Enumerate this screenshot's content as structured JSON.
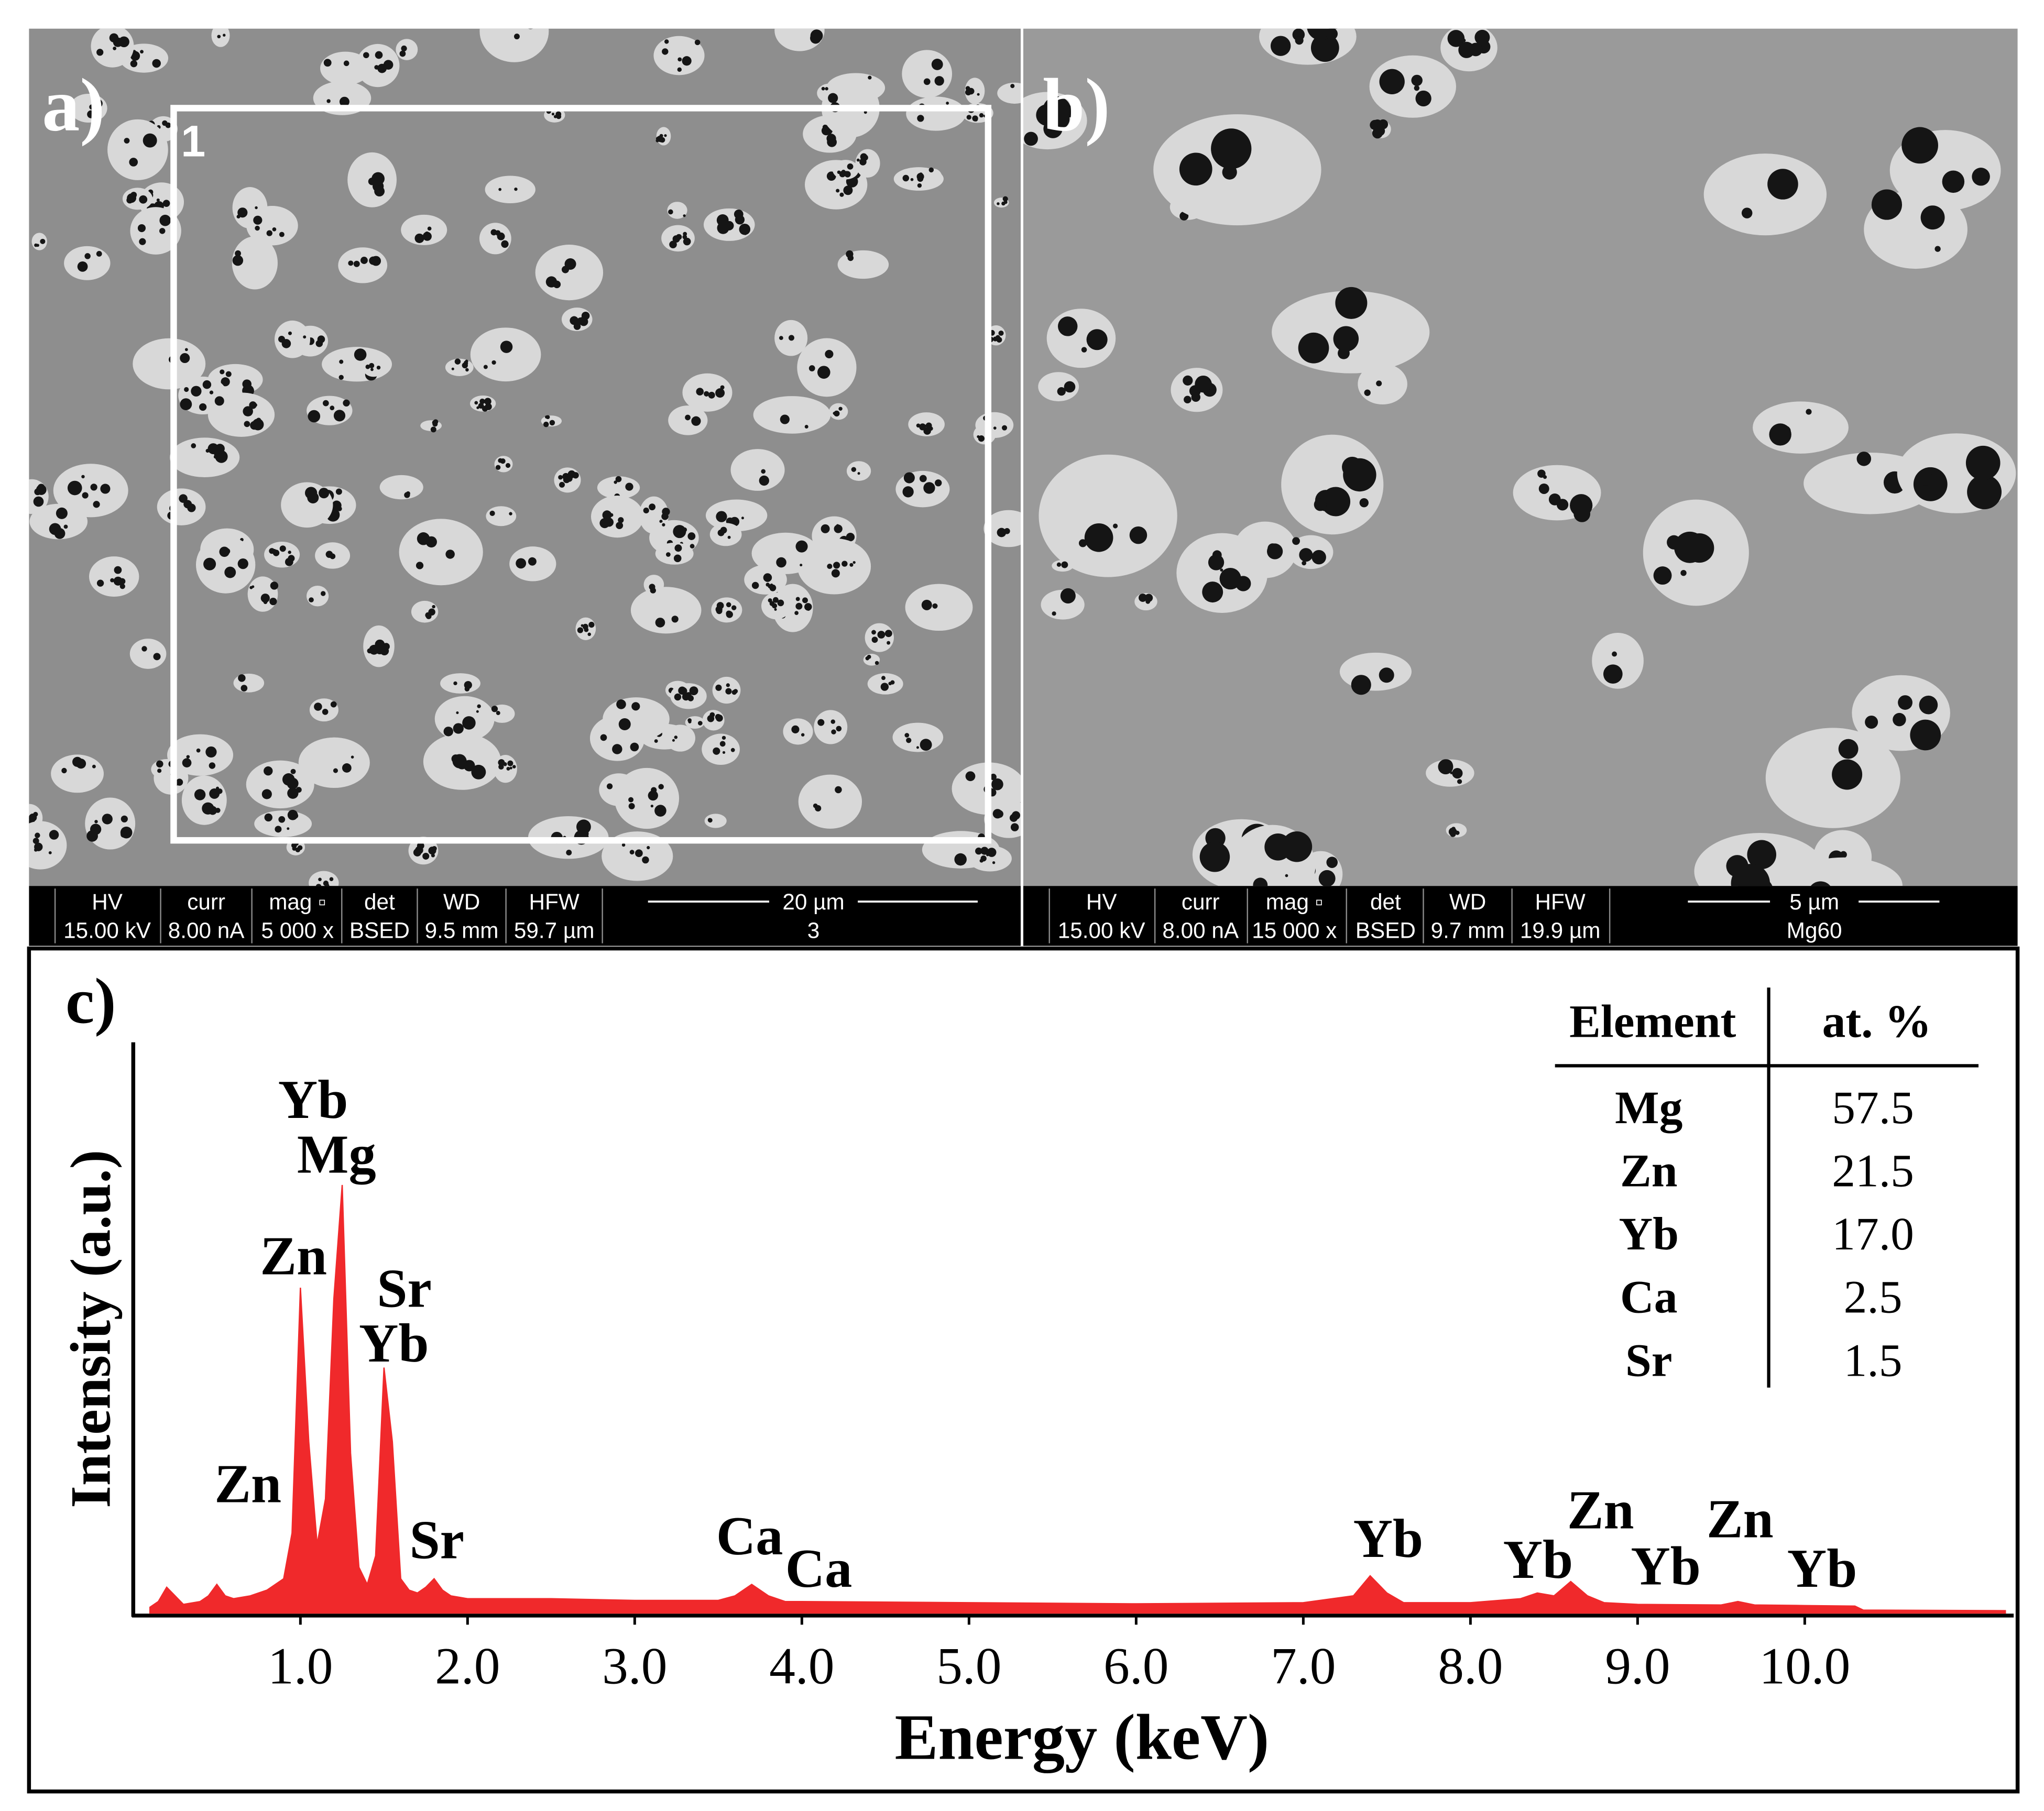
{
  "panels": [
    {
      "label": "a)",
      "region_label": "1",
      "info_headers": [
        "HV",
        "curr",
        "mag ▫",
        "det",
        "WD",
        "HFW"
      ],
      "info_values": [
        "15.00 kV",
        "8.00 nA",
        "5 000 x",
        "BSED",
        "9.5 mm",
        "59.7 µm"
      ],
      "scale": "20 µm",
      "sample": "3"
    },
    {
      "label": "b)",
      "info_headers": [
        "HV",
        "curr",
        "mag ▫",
        "det",
        "WD",
        "HFW"
      ],
      "info_values": [
        "15.00 kV",
        "8.00 nA",
        "15 000 x",
        "BSED",
        "9.7 mm",
        "19.9 µm"
      ],
      "scale": "5 µm",
      "sample": "Mg60"
    }
  ],
  "chart_data": {
    "type": "area",
    "label": "c)",
    "xlabel": "Energy (keV)",
    "ylabel": "Intensity (a.u.)",
    "xlim": [
      0,
      11.25
    ],
    "ylim": [
      0,
      100
    ],
    "xticks": [
      {
        "value": 1,
        "label": "1.0"
      },
      {
        "value": 2,
        "label": "2.0"
      },
      {
        "value": 3,
        "label": "3.0"
      },
      {
        "value": 4,
        "label": "4.0"
      },
      {
        "value": 5,
        "label": "5.0"
      },
      {
        "value": 6,
        "label": "6.0"
      },
      {
        "value": 7,
        "label": "7.0"
      },
      {
        "value": 8,
        "label": "8.0"
      },
      {
        "value": 9,
        "label": "9.0"
      },
      {
        "value": 10,
        "label": "10.0"
      }
    ],
    "x": [
      0.1,
      0.15,
      0.2,
      0.25,
      0.3,
      0.4,
      0.45,
      0.5,
      0.55,
      0.6,
      0.7,
      0.8,
      0.9,
      0.95,
      1.0,
      1.05,
      1.1,
      1.15,
      1.2,
      1.25,
      1.3,
      1.35,
      1.4,
      1.45,
      1.5,
      1.55,
      1.6,
      1.65,
      1.7,
      1.75,
      1.8,
      1.85,
      1.9,
      2.0,
      2.5,
      3.0,
      3.5,
      3.6,
      3.7,
      3.8,
      3.9,
      4.0,
      5.0,
      6.0,
      7.0,
      7.3,
      7.4,
      7.5,
      7.6,
      8.0,
      8.3,
      8.4,
      8.5,
      8.6,
      8.7,
      8.8,
      9.0,
      9.5,
      9.6,
      9.7,
      10.0,
      10.3,
      10.35,
      11.2
    ],
    "series": [
      {
        "name": "Spectrum",
        "color": "#f0292b",
        "values": [
          1,
          2,
          4.5,
          3,
          1.5,
          2,
          3,
          5,
          3,
          2.5,
          3,
          4,
          6,
          14,
          57,
          30,
          12,
          20,
          55,
          75,
          28,
          8,
          5,
          10,
          43,
          30,
          6,
          4,
          3.5,
          4.5,
          6,
          4,
          3,
          2.5,
          2.5,
          2.2,
          2.2,
          3,
          5,
          3,
          2,
          2,
          1.8,
          1.6,
          1.8,
          3,
          6.5,
          3.5,
          1.8,
          1.8,
          2.5,
          3.5,
          3,
          5.5,
          3,
          1.8,
          1.5,
          1.4,
          2,
          1.4,
          1.3,
          1.2,
          0.5,
          0.4
        ]
      }
    ],
    "peak_labels": [
      "Yb",
      "Mg",
      "Zn",
      "Sr",
      "Yb",
      "Zn",
      "Sr",
      "Ca",
      "Ca",
      "Yb",
      "Yb",
      "Zn",
      "Yb",
      "Zn",
      "Yb"
    ]
  },
  "table": {
    "header": [
      "Element",
      "at. %"
    ],
    "rows": [
      [
        "Mg",
        "57.5"
      ],
      [
        "Zn",
        "21.5"
      ],
      [
        "Yb",
        "17.0"
      ],
      [
        "Ca",
        "2.5"
      ],
      [
        "Sr",
        "1.5"
      ]
    ]
  }
}
